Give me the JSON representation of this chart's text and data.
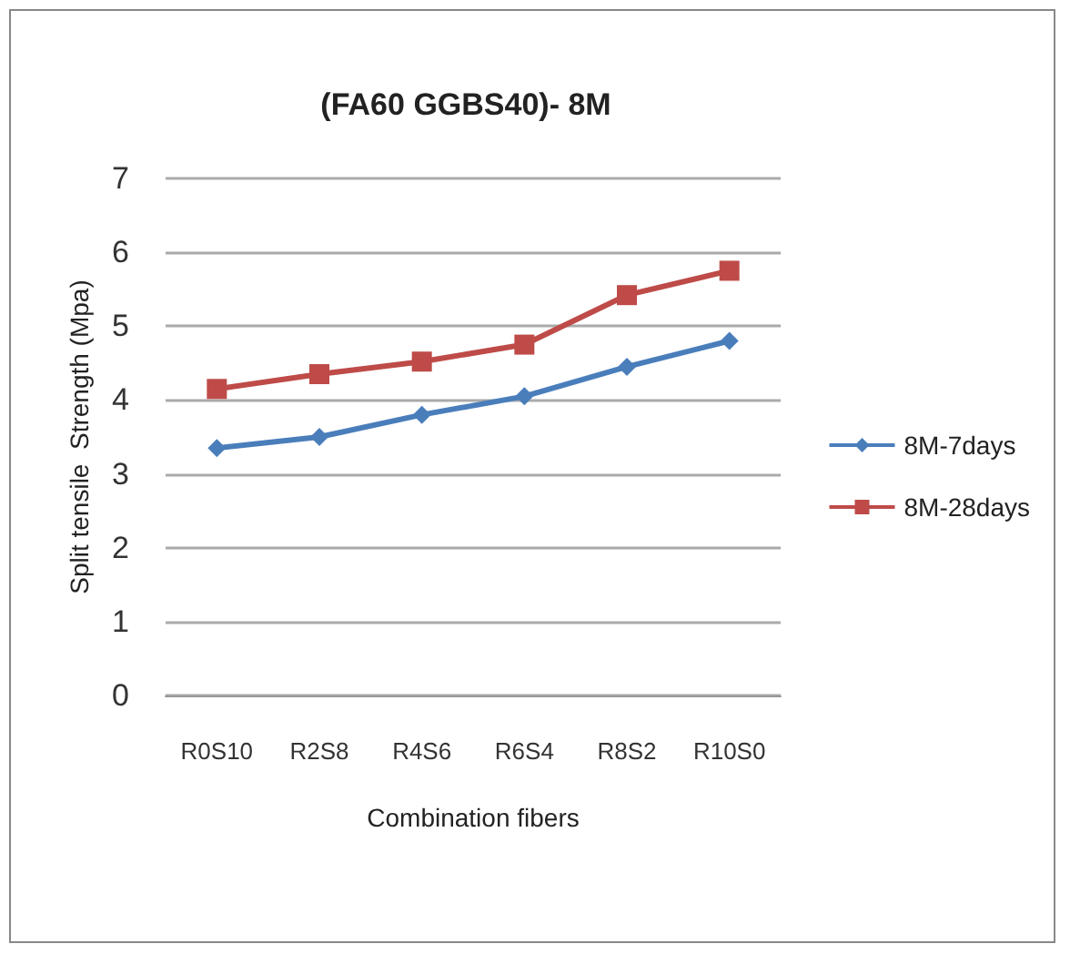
{
  "chart_data": {
    "type": "line",
    "title": "(FA60 GGBS40)- 8M",
    "xlabel": "Combination fibers",
    "ylabel": "Split tensile  Strength (Mpa)",
    "categories": [
      "R0S10",
      "R2S8",
      "R4S6",
      "R6S4",
      "R8S2",
      "R10S0"
    ],
    "series": [
      {
        "name": "8M-7days",
        "color": "#4a7ebb",
        "marker": "diamond",
        "values": [
          3.35,
          3.5,
          3.8,
          4.05,
          4.45,
          4.8
        ]
      },
      {
        "name": "8M-28days",
        "color": "#be4b48",
        "marker": "square",
        "values": [
          4.15,
          4.35,
          4.52,
          4.75,
          5.42,
          5.75
        ]
      }
    ],
    "ylim": [
      0,
      7
    ],
    "yticks": [
      0,
      1,
      2,
      3,
      4,
      5,
      6,
      7
    ],
    "grid": "y",
    "legend": "right"
  }
}
